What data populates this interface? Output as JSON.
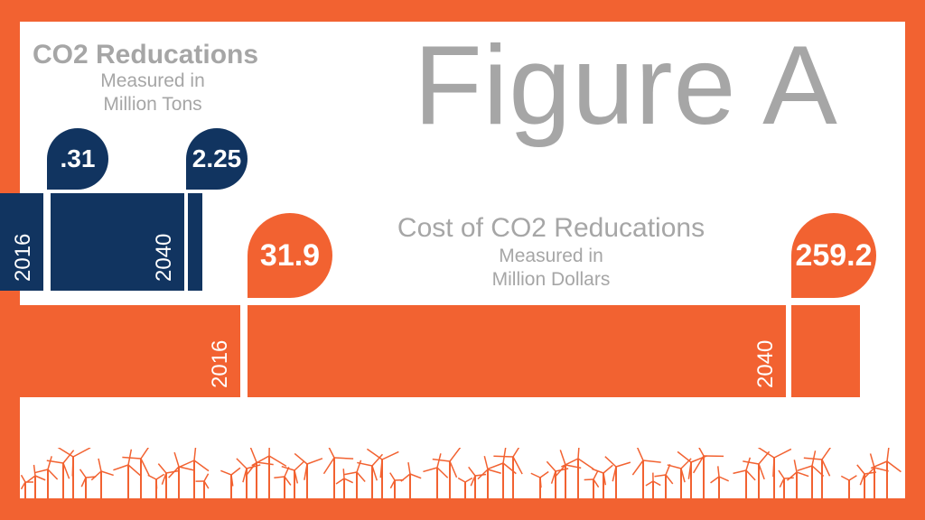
{
  "figure_title": "Figure A",
  "colors": {
    "navy": "#113460",
    "orange": "#f26231",
    "gray": "#a6a6a6",
    "background": "#ffffff"
  },
  "chart_data": [
    {
      "type": "bar",
      "orientation": "horizontal",
      "title": "CO2 Reducations",
      "subtitle_line1": "Measured in",
      "subtitle_line2": "Million Tons",
      "categories": [
        "2016",
        "2040"
      ],
      "value_labels": [
        ".31",
        "2.25"
      ],
      "values": [
        0.31,
        2.25
      ],
      "color": "#113460"
    },
    {
      "type": "bar",
      "orientation": "horizontal",
      "title": "Cost of CO2 Reducations",
      "subtitle_line1": "Measured in",
      "subtitle_line2": "Million Dollars",
      "categories": [
        "2016",
        "2040"
      ],
      "value_labels": [
        "31.9",
        "259.2"
      ],
      "values": [
        31.9,
        259.2
      ],
      "color": "#f26231"
    }
  ],
  "decoration": {
    "bottom_strip": "wind-turbine-icons"
  }
}
